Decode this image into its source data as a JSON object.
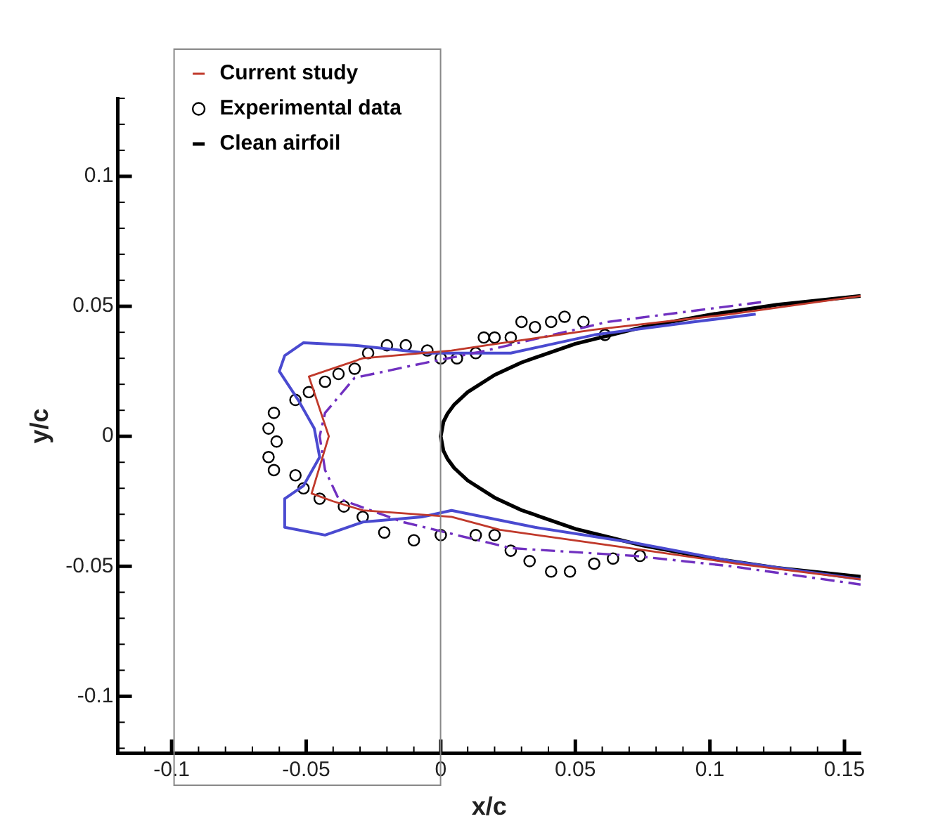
{
  "chart_data": {
    "type": "line",
    "xlabel": "x/c",
    "ylabel": "y/c",
    "legend": "top left",
    "grid": false,
    "xlim": [
      -0.12,
      0.156
    ],
    "ylim": [
      -0.122,
      0.13
    ],
    "xticks": [
      {
        "value": -0.12,
        "label": null
      },
      {
        "value": -0.11,
        "label": null
      },
      -0.1,
      {
        "value": -0.09,
        "label": null
      },
      {
        "value": -0.08,
        "label": null
      },
      {
        "value": -0.07,
        "label": null
      },
      {
        "value": -0.06,
        "label": null
      },
      -0.05,
      {
        "value": -0.04,
        "label": null
      },
      {
        "value": -0.03,
        "label": null
      },
      {
        "value": -0.02,
        "label": null
      },
      {
        "value": -0.01,
        "label": null
      },
      0,
      {
        "value": 0.01,
        "label": null
      },
      {
        "value": 0.02,
        "label": null
      },
      {
        "value": 0.03,
        "label": null
      },
      {
        "value": 0.04,
        "label": null
      },
      0.05,
      {
        "value": 0.06,
        "label": null
      },
      {
        "value": 0.07,
        "label": null
      },
      {
        "value": 0.08,
        "label": null
      },
      {
        "value": 0.09,
        "label": null
      },
      0.1,
      {
        "value": 0.11,
        "label": null
      },
      {
        "value": 0.12,
        "label": null
      },
      {
        "value": 0.13,
        "label": null
      },
      {
        "value": 0.14,
        "label": null
      },
      0.15
    ],
    "yticks": [
      {
        "value": -0.12,
        "label": null
      },
      {
        "value": -0.11,
        "label": null
      },
      -0.1,
      {
        "value": -0.09,
        "label": null
      },
      {
        "value": -0.08,
        "label": null
      },
      {
        "value": -0.07,
        "label": null
      },
      {
        "value": -0.06,
        "label": null
      },
      -0.05,
      {
        "value": -0.04,
        "label": null
      },
      {
        "value": -0.03,
        "label": null
      },
      {
        "value": -0.02,
        "label": null
      },
      {
        "value": -0.01,
        "label": null
      },
      0,
      {
        "value": 0.01,
        "label": null
      },
      {
        "value": 0.02,
        "label": null
      },
      {
        "value": 0.03,
        "label": null
      },
      {
        "value": 0.04,
        "label": null
      },
      0.05,
      {
        "value": 0.06,
        "label": null
      },
      {
        "value": 0.07,
        "label": null
      },
      {
        "value": 0.08,
        "label": null
      },
      {
        "value": 0.09,
        "label": null
      },
      0.1,
      {
        "value": 0.11,
        "label": null
      },
      {
        "value": 0.12,
        "label": null
      },
      {
        "value": 0.13,
        "label": null
      }
    ],
    "series": [
      {
        "name": "Current study",
        "type": "line",
        "color": "#c0392b",
        "line_style": "solid",
        "x": [
          0.156,
          0.108,
          0.057,
          0.017,
          0.004,
          -0.029,
          -0.049,
          -0.0416,
          -0.048,
          -0.04,
          -0.029,
          0.004,
          0.022,
          0.077,
          0.11,
          0.156
        ],
        "values": [
          0.054,
          0.047,
          0.041,
          0.035,
          0.033,
          0.03,
          0.023,
          0,
          -0.022,
          -0.025,
          -0.0285,
          -0.031,
          -0.036,
          -0.044,
          -0.049,
          -0.055
        ]
      },
      {
        "type": "line",
        "color": "#7030c0",
        "line_style": "dashed",
        "x": [
          0.119,
          0.062,
          0.017,
          -0.007,
          -0.032,
          -0.043,
          -0.045,
          -0.043,
          -0.038,
          -0.014,
          0.026,
          0.072,
          0.108,
          0.156
        ],
        "values": [
          0.0516,
          0.044,
          0.033,
          0.028,
          0.0225,
          0.009,
          0,
          -0.013,
          -0.024,
          -0.033,
          -0.043,
          -0.046,
          -0.05,
          -0.057
        ]
      },
      {
        "type": "line",
        "color": "#4a4ad0",
        "line_style": "solid",
        "x": [
          0.117,
          0.094,
          0.057,
          0.026,
          -0.005,
          -0.032,
          -0.051,
          -0.058,
          -0.06,
          -0.053,
          -0.047,
          -0.045,
          -0.051,
          -0.058,
          -0.058,
          -0.043,
          -0.029,
          -0.007,
          0.004,
          0.035,
          0.072,
          0.108,
          0.156
        ],
        "values": [
          0.047,
          0.044,
          0.039,
          0.032,
          0.032,
          0.035,
          0.036,
          0.031,
          0.025,
          0.014,
          0.003,
          -0.008,
          -0.019,
          -0.024,
          -0.035,
          -0.038,
          -0.033,
          -0.031,
          -0.0285,
          -0.035,
          -0.041,
          -0.048,
          -0.055
        ]
      },
      {
        "name": "Experimental data",
        "type": "scatter",
        "marker": "circle",
        "color": "#000000",
        "x": [
          0.061,
          0.053,
          0.046,
          0.041,
          0.035,
          0.03,
          0.026,
          0.02,
          0.016,
          0.013,
          0.006,
          0.0,
          -0.005,
          -0.013,
          -0.02,
          -0.027,
          -0.032,
          -0.038,
          -0.043,
          -0.049,
          -0.054,
          -0.062,
          -0.064,
          -0.061,
          -0.064,
          -0.062,
          -0.054,
          -0.051,
          -0.045,
          -0.036,
          -0.029,
          -0.021,
          -0.01,
          0.0,
          0.013,
          0.02,
          0.026,
          0.033,
          0.041,
          0.048,
          0.057,
          0.064,
          0.074
        ],
        "values": [
          0.039,
          0.044,
          0.046,
          0.044,
          0.042,
          0.044,
          0.038,
          0.038,
          0.038,
          0.032,
          0.03,
          0.03,
          0.033,
          0.035,
          0.035,
          0.032,
          0.026,
          0.024,
          0.021,
          0.017,
          0.014,
          0.009,
          0.003,
          -0.002,
          -0.008,
          -0.013,
          -0.015,
          -0.02,
          -0.024,
          -0.027,
          -0.031,
          -0.037,
          -0.04,
          -0.038,
          -0.038,
          -0.038,
          -0.044,
          -0.048,
          -0.052,
          -0.052,
          -0.049,
          -0.047,
          -0.046
        ]
      },
      {
        "name": "Clean airfoil",
        "type": "line",
        "color": "#000000",
        "line_style": "solid",
        "x": [
          0.156,
          0.125,
          0.1,
          0.075,
          0.05,
          0.03,
          0.02,
          0.01,
          0.005,
          0.0025,
          0.001,
          0,
          0.001,
          0.0025,
          0.005,
          0.01,
          0.02,
          0.03,
          0.05,
          0.075,
          0.1,
          0.125,
          0.156
        ],
        "values": [
          0.054,
          0.0506,
          0.0468,
          0.042,
          0.0356,
          0.0284,
          0.0236,
          0.017,
          0.0122,
          0.0087,
          0.0056,
          0,
          -0.0056,
          -0.0087,
          -0.0122,
          -0.017,
          -0.0236,
          -0.0284,
          -0.0356,
          -0.042,
          -0.0468,
          -0.0506,
          -0.054
        ]
      }
    ]
  }
}
